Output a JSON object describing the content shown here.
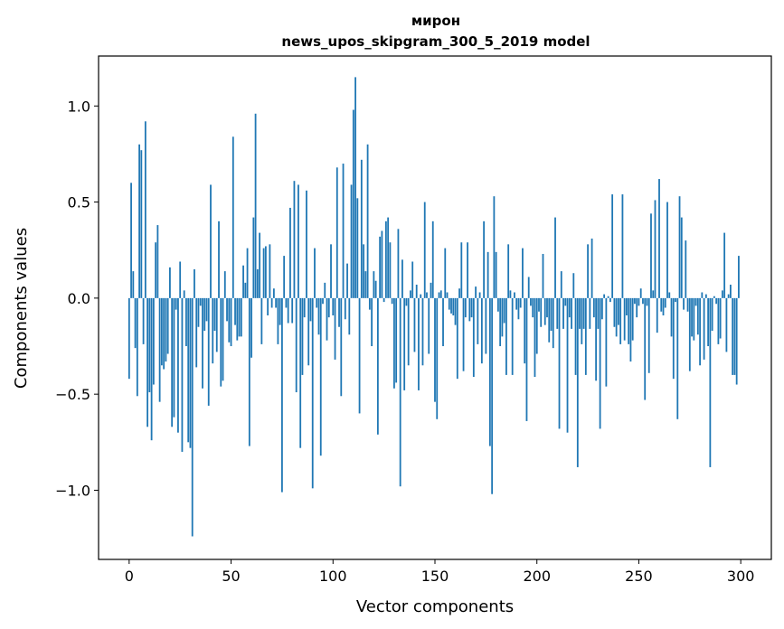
{
  "chart_data": {
    "type": "bar",
    "title": "мирон",
    "subtitle": "news_upos_skipgram_300_5_2019 model",
    "xlabel": "Vector components",
    "ylabel": "Components values",
    "xlim": [
      -15,
      315
    ],
    "ylim": [
      -1.36,
      1.26
    ],
    "x_ticks": [
      0,
      50,
      100,
      150,
      200,
      250,
      300
    ],
    "y_ticks": [
      -1.0,
      -0.5,
      0.0,
      0.5,
      1.0
    ],
    "x_tick_labels": [
      "0",
      "50",
      "100",
      "150",
      "200",
      "250",
      "300"
    ],
    "y_tick_labels": [
      "−1.0",
      "−0.5",
      "0.0",
      "0.5",
      "1.0"
    ],
    "grid": false,
    "legend": "none",
    "bar_color": "#1f77b4",
    "values": [
      -0.42,
      0.6,
      0.14,
      -0.26,
      -0.51,
      0.8,
      0.77,
      -0.24,
      0.92,
      -0.67,
      -0.49,
      -0.74,
      -0.45,
      0.29,
      0.38,
      -0.54,
      -0.35,
      -0.37,
      -0.33,
      -0.29,
      0.16,
      -0.67,
      -0.62,
      -0.06,
      -0.7,
      0.19,
      -0.8,
      0.04,
      -0.25,
      -0.75,
      -0.78,
      -1.24,
      0.15,
      -0.36,
      -0.15,
      -0.04,
      -0.47,
      -0.17,
      -0.12,
      -0.56,
      0.59,
      -0.34,
      -0.17,
      -0.28,
      0.4,
      -0.46,
      -0.43,
      0.14,
      -0.12,
      -0.23,
      -0.25,
      0.84,
      -0.14,
      -0.22,
      -0.2,
      -0.2,
      0.17,
      0.08,
      0.26,
      -0.77,
      -0.31,
      0.42,
      0.96,
      0.15,
      0.34,
      -0.24,
      0.26,
      0.27,
      -0.09,
      0.28,
      -0.05,
      0.05,
      -0.05,
      -0.24,
      -0.14,
      -1.01,
      0.22,
      -0.05,
      -0.13,
      0.47,
      -0.13,
      0.61,
      -0.49,
      0.59,
      -0.78,
      -0.4,
      -0.1,
      0.56,
      -0.35,
      -0.12,
      -0.99,
      0.26,
      -0.05,
      -0.19,
      -0.82,
      -0.03,
      0.08,
      -0.22,
      -0.1,
      0.28,
      -0.09,
      -0.32,
      0.68,
      -0.15,
      -0.51,
      0.7,
      -0.11,
      0.18,
      -0.19,
      0.59,
      0.98,
      1.15,
      0.52,
      -0.6,
      0.72,
      0.28,
      0.14,
      0.8,
      -0.06,
      -0.25,
      0.14,
      0.09,
      -0.71,
      0.32,
      0.35,
      -0.02,
      0.4,
      0.42,
      0.29,
      -0.03,
      -0.47,
      -0.44,
      0.36,
      -0.98,
      0.2,
      -0.48,
      -0.04,
      -0.35,
      0.04,
      0.19,
      -0.28,
      0.07,
      -0.48,
      0.02,
      -0.35,
      0.5,
      0.03,
      -0.29,
      0.08,
      0.4,
      -0.54,
      -0.63,
      0.03,
      0.04,
      -0.25,
      0.26,
      0.03,
      -0.06,
      -0.08,
      -0.09,
      -0.14,
      -0.42,
      0.05,
      0.29,
      -0.38,
      -0.1,
      0.29,
      -0.12,
      -0.1,
      -0.41,
      0.06,
      -0.24,
      0.03,
      -0.34,
      0.4,
      -0.29,
      0.24,
      -0.77,
      -1.02,
      0.53,
      0.24,
      -0.07,
      -0.25,
      -0.2,
      -0.13,
      -0.4,
      0.28,
      0.04,
      -0.4,
      0.03,
      -0.06,
      -0.11,
      -0.05,
      0.26,
      -0.34,
      -0.64,
      0.11,
      -0.04,
      -0.1,
      -0.41,
      -0.29,
      -0.07,
      -0.15,
      0.23,
      -0.14,
      -0.1,
      -0.23,
      -0.17,
      -0.26,
      0.42,
      -0.16,
      -0.68,
      0.14,
      -0.16,
      -0.04,
      -0.7,
      -0.1,
      -0.16,
      0.13,
      -0.4,
      -0.88,
      -0.16,
      -0.24,
      -0.16,
      -0.4,
      0.28,
      -0.16,
      0.31,
      -0.1,
      -0.43,
      -0.16,
      -0.68,
      -0.11,
      0.02,
      -0.46,
      0.01,
      -0.02,
      0.54,
      -0.15,
      -0.2,
      -0.14,
      -0.24,
      0.54,
      -0.22,
      -0.09,
      -0.24,
      -0.33,
      -0.22,
      -0.03,
      -0.1,
      -0.04,
      0.05,
      -0.03,
      -0.53,
      -0.04,
      -0.39,
      0.44,
      0.04,
      0.51,
      -0.18,
      0.62,
      -0.07,
      -0.09,
      -0.05,
      0.5,
      0.03,
      -0.2,
      -0.42,
      -0.02,
      -0.63,
      0.53,
      0.42,
      -0.06,
      0.3,
      -0.07,
      -0.38,
      -0.2,
      -0.22,
      -0.04,
      -0.19,
      -0.35,
      0.03,
      -0.32,
      0.02,
      -0.25,
      -0.88,
      -0.17,
      0.01,
      -0.03,
      -0.24,
      -0.21,
      0.04,
      0.34,
      -0.28,
      0.02,
      0.07,
      -0.4,
      -0.4,
      -0.45,
      0.22
    ]
  }
}
